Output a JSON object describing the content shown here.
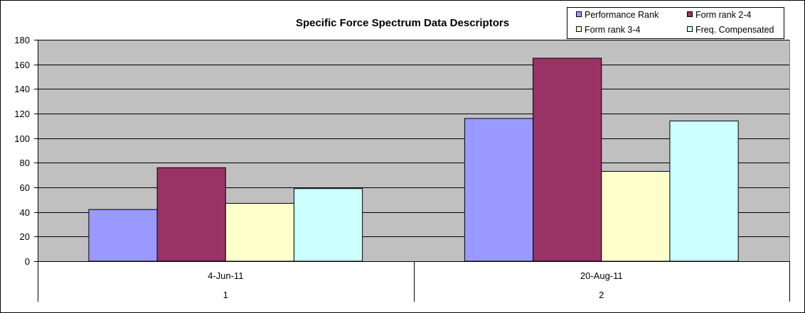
{
  "chart_data": {
    "type": "bar",
    "title": "Specific Force Spectrum Data Descriptors",
    "categories": [
      "4-Jun-11",
      "20-Aug-11"
    ],
    "category_sublabels": [
      "1",
      "2"
    ],
    "series": [
      {
        "name": "Performance Rank",
        "values": [
          42,
          116
        ],
        "color": "#9999ff"
      },
      {
        "name": "Form rank 2-4",
        "values": [
          76,
          165
        ],
        "color": "#993366"
      },
      {
        "name": "Form rank 3-4",
        "values": [
          47,
          73
        ],
        "color": "#ffffcc"
      },
      {
        "name": "Freq. Compensated",
        "values": [
          59,
          114
        ],
        "color": "#ccffff"
      }
    ],
    "ylim": [
      0,
      180
    ],
    "yticks": [
      0,
      20,
      40,
      60,
      80,
      100,
      120,
      140,
      160,
      180
    ],
    "grid": true,
    "legend_position": "top-right",
    "plot_background": "#c0c0c0"
  }
}
